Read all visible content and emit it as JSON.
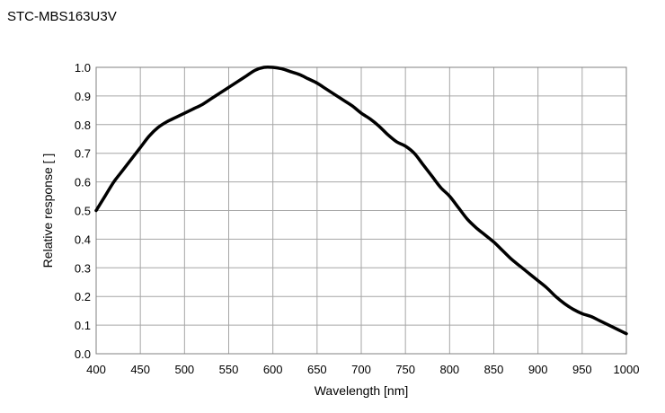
{
  "chart_data": {
    "type": "line",
    "title": "STC-MBS163U3V",
    "xlabel": "Wavelength [nm]",
    "ylabel": "Relative response [ ]",
    "xlim": [
      400,
      1000
    ],
    "ylim": [
      0,
      1.0
    ],
    "x_ticks": [
      "400",
      "450",
      "500",
      "550",
      "600",
      "650",
      "700",
      "750",
      "800",
      "850",
      "900",
      "950",
      "1000"
    ],
    "y_ticks": [
      "0.0",
      "0.1",
      "0.2",
      "0.3",
      "0.4",
      "0.5",
      "0.6",
      "0.7",
      "0.8",
      "0.9",
      "1.0"
    ],
    "grid": true,
    "legend": "none",
    "colors": {
      "line": "#000000",
      "grid": "#a6a6a6",
      "frame": "#808080"
    },
    "series": [
      {
        "x": [
          400,
          410,
          420,
          430,
          440,
          450,
          460,
          470,
          480,
          490,
          500,
          510,
          520,
          530,
          540,
          550,
          560,
          570,
          580,
          590,
          600,
          610,
          620,
          630,
          640,
          650,
          660,
          670,
          680,
          690,
          700,
          710,
          720,
          730,
          740,
          750,
          760,
          770,
          780,
          790,
          800,
          810,
          820,
          830,
          840,
          850,
          860,
          870,
          880,
          890,
          900,
          910,
          920,
          930,
          940,
          950,
          960,
          970,
          980,
          990,
          1000
        ],
        "y": [
          0.5,
          0.55,
          0.6,
          0.64,
          0.68,
          0.72,
          0.76,
          0.79,
          0.81,
          0.825,
          0.84,
          0.855,
          0.87,
          0.89,
          0.91,
          0.93,
          0.95,
          0.97,
          0.99,
          1.0,
          1.0,
          0.995,
          0.985,
          0.975,
          0.96,
          0.945,
          0.925,
          0.905,
          0.885,
          0.865,
          0.84,
          0.82,
          0.795,
          0.765,
          0.74,
          0.725,
          0.7,
          0.66,
          0.62,
          0.58,
          0.55,
          0.51,
          0.47,
          0.44,
          0.415,
          0.39,
          0.36,
          0.33,
          0.305,
          0.28,
          0.255,
          0.23,
          0.2,
          0.175,
          0.155,
          0.14,
          0.13,
          0.115,
          0.1,
          0.085,
          0.07
        ]
      }
    ]
  }
}
